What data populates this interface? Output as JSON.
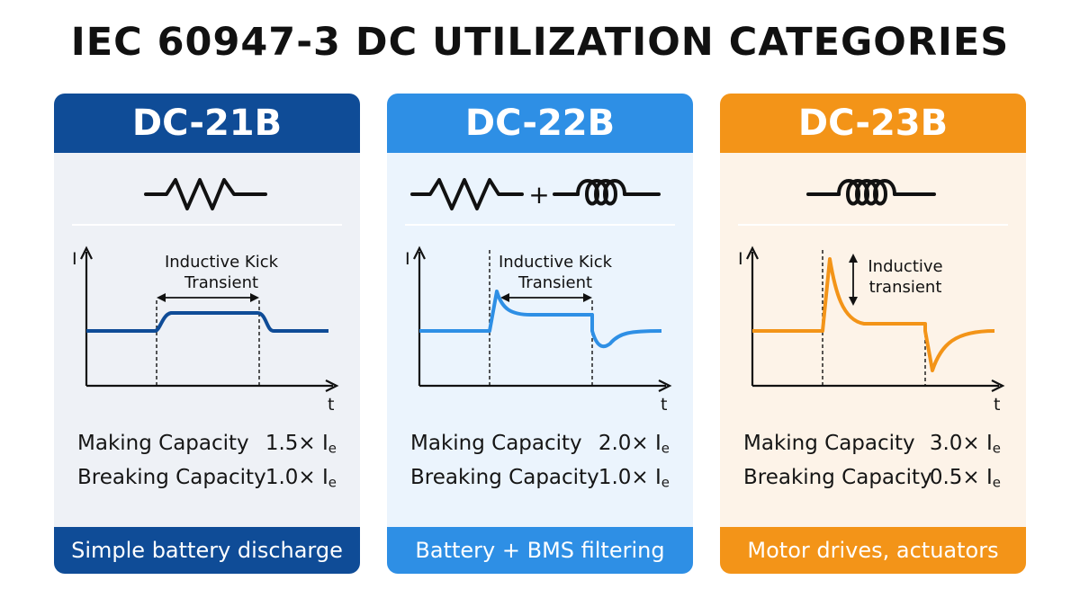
{
  "title": "IEC 60947-3 DC UTILIZATION CATEGORIES",
  "colors": {
    "dc21b": "#0f4c97",
    "dc22b": "#2e8fe5",
    "dc23b": "#f39418"
  },
  "cards": [
    {
      "category": "DC-21B",
      "load_symbols": [
        "resistor-icon"
      ],
      "graph": {
        "y_axis_label": "I",
        "x_axis_label": "t",
        "annotation_lines": [
          "Inductive Kick",
          "Transient"
        ]
      },
      "making_label": "Making Capacity",
      "making_value": "1.5× I",
      "breaking_label": "Breaking Capacity",
      "breaking_value": "1.0× I",
      "subscript": "e",
      "footer": "Simple battery discharge"
    },
    {
      "category": "DC-22B",
      "load_symbols": [
        "resistor-icon",
        "plus-icon",
        "inductor-icon"
      ],
      "plus_sign": "+",
      "graph": {
        "y_axis_label": "I",
        "x_axis_label": "t",
        "annotation_lines": [
          "Inductive Kick",
          "Transient"
        ]
      },
      "making_label": "Making Capacity",
      "making_value": "2.0× I",
      "breaking_label": "Breaking Capacity",
      "breaking_value": "1.0× I",
      "subscript": "e",
      "footer": "Battery + BMS filtering"
    },
    {
      "category": "DC-23B",
      "load_symbols": [
        "inductor-icon"
      ],
      "graph": {
        "y_axis_label": "I",
        "x_axis_label": "t",
        "annotation_lines": [
          "Inductive",
          "transient"
        ]
      },
      "making_label": "Making Capacity",
      "making_value": "3.0× I",
      "breaking_label": "Breaking Capacity",
      "breaking_value": "0.5× I",
      "subscript": "e",
      "footer": "Motor drives, actuators"
    }
  ]
}
